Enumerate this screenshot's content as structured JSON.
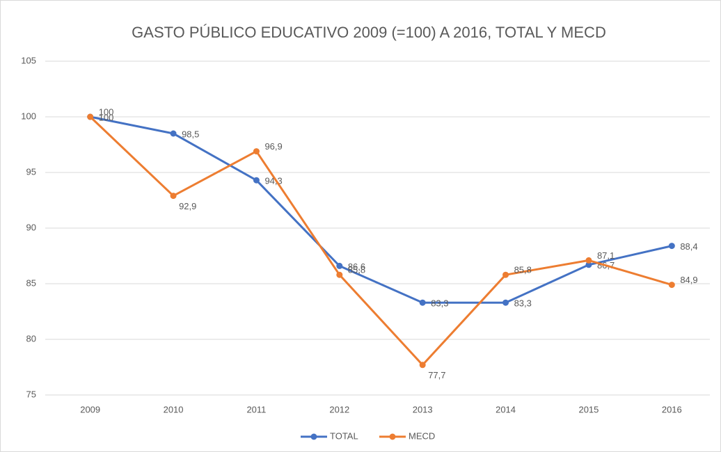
{
  "chart_data": {
    "type": "line",
    "title": "GASTO PÚBLICO EDUCATIVO 2009 (=100) A 2016, TOTAL Y MECD",
    "categories": [
      "2009",
      "2010",
      "2011",
      "2012",
      "2013",
      "2014",
      "2015",
      "2016"
    ],
    "series": [
      {
        "name": "TOTAL",
        "color": "#4472c4",
        "values": [
          100,
          98.5,
          94.3,
          86.6,
          83.3,
          83.3,
          86.7,
          88.4
        ],
        "value_labels": [
          "100",
          "98,5",
          "94,3",
          "86,6",
          "83,3",
          "83,3",
          "86,7",
          "88,4"
        ]
      },
      {
        "name": "MECD",
        "color": "#ed7d31",
        "values": [
          100,
          92.9,
          96.9,
          85.8,
          77.7,
          85.8,
          87.1,
          84.9
        ],
        "value_labels": [
          "100",
          "92,9",
          "96,9",
          "85,8",
          "77,7",
          "85,8",
          "87,1",
          "84,9"
        ]
      }
    ],
    "ylim": [
      75,
      105
    ],
    "yticks": [
      75,
      80,
      85,
      90,
      95,
      100,
      105
    ],
    "grid": true,
    "legend": "bottom"
  }
}
